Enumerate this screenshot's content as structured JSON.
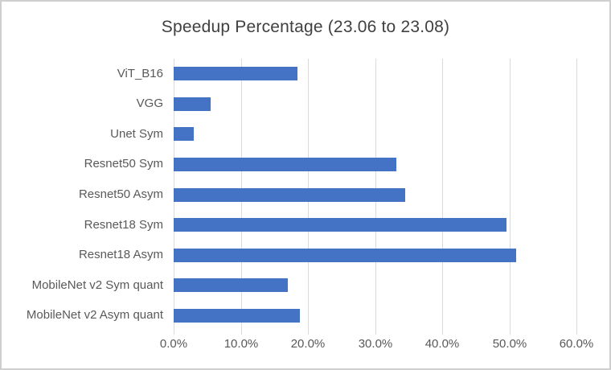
{
  "chart_data": {
    "type": "bar",
    "orientation": "horizontal",
    "title": "Speedup Percentage (23.06 to 23.08)",
    "categories": [
      "ViT_B16",
      "VGG",
      "Unet Sym",
      "Resnet50 Sym",
      "Resnet50 Asym",
      "Resnet18 Sym",
      "Resnet18 Asym",
      "MobileNet v2 Sym quant",
      "MobileNet v2 Asym quant"
    ],
    "values": [
      18.5,
      5.5,
      3.0,
      33.2,
      34.5,
      49.6,
      51.0,
      17.0,
      18.8
    ],
    "value_unit": "%",
    "xlim": [
      0,
      60
    ],
    "x_tick_interval": 10,
    "x_tick_labels": [
      "0.0%",
      "10.0%",
      "20.0%",
      "30.0%",
      "40.0%",
      "50.0%",
      "60.0%"
    ],
    "grid": true,
    "legend": "none",
    "bar_color": "#4472C4",
    "gridline_color": "#d9d9d9",
    "title_color": "#404040",
    "axis_label_color": "#595959",
    "background_color": "#ffffff",
    "border_color": "#cfcfcf"
  }
}
